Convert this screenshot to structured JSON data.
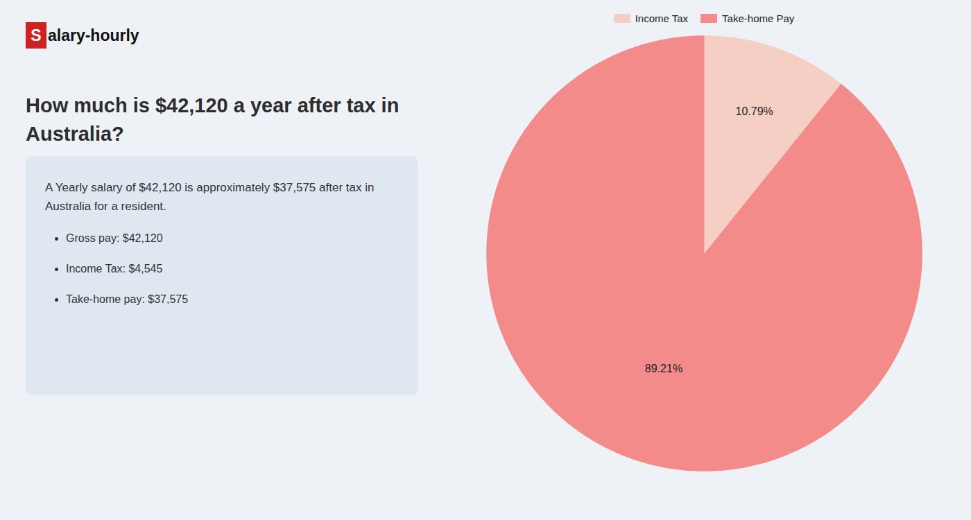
{
  "chart_data": {
    "type": "pie",
    "title": "How much is $42,120 a year after tax in\nAustralia?",
    "categories": [
      "Income Tax",
      "Take-home Pay"
    ],
    "values": [
      10.79,
      89.21
    ],
    "value_labels": [
      "10.79%",
      "89.21%"
    ],
    "colors": [
      "#f5cfc4",
      "#f48b8b"
    ],
    "data_labels": true,
    "legend": "top",
    "annotations": [
      "Salary-hourly",
      "A Yearly salary of $42,120 is approximately $37,575 after tax in",
      "Australia for a resident.",
      "Gross pay: $42,120",
      "Income Tax: $4,545",
      "Take-home pay: $37,575"
    ]
  }
}
